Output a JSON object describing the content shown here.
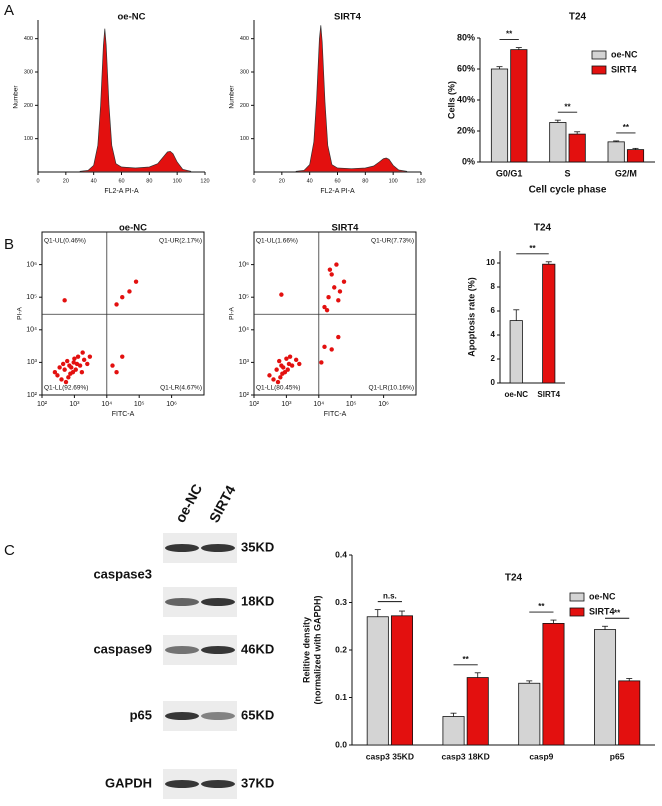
{
  "panel_labels": [
    "A",
    "B",
    "C"
  ],
  "chart_data": [
    {
      "type": "histogram-curve",
      "title": "oe-NC",
      "xlabel": "FL2-A PI-A",
      "ylabel": "Number",
      "xlim": [
        0,
        120
      ],
      "xticks": [
        0,
        20,
        40,
        60,
        80,
        100,
        120
      ],
      "ylim": [
        0,
        450
      ],
      "yticks": [
        100,
        200,
        300,
        400
      ],
      "x": [
        30,
        36,
        40,
        43,
        45,
        47,
        48,
        49,
        51,
        53,
        56,
        60,
        70,
        80,
        86,
        90,
        93,
        95,
        97,
        100,
        104,
        110
      ],
      "values": [
        2,
        5,
        20,
        80,
        200,
        380,
        430,
        380,
        200,
        80,
        25,
        15,
        12,
        15,
        25,
        45,
        60,
        62,
        55,
        30,
        8,
        2
      ],
      "color": "#e3100f"
    },
    {
      "type": "histogram-curve",
      "title": "SIRT4",
      "xlabel": "FL2-A PI-A",
      "ylabel": "Number",
      "xlim": [
        0,
        120
      ],
      "xticks": [
        0,
        20,
        40,
        60,
        80,
        100,
        120
      ],
      "ylim": [
        0,
        450
      ],
      "yticks": [
        100,
        200,
        300,
        400
      ],
      "x": [
        30,
        36,
        40,
        43,
        45,
        47,
        48,
        49,
        51,
        53,
        56,
        60,
        70,
        80,
        86,
        90,
        93,
        95,
        97,
        100,
        104,
        110
      ],
      "values": [
        2,
        5,
        22,
        90,
        220,
        400,
        440,
        390,
        210,
        80,
        22,
        12,
        10,
        12,
        18,
        30,
        40,
        42,
        38,
        20,
        6,
        2
      ],
      "color": "#e3100f"
    },
    {
      "type": "bar",
      "title": "T24",
      "xlabel": "Cell cycle  phase",
      "ylabel": "Cells (%)",
      "categories": [
        "G0/G1",
        "S",
        "G2/M"
      ],
      "series": [
        {
          "name": "oe-NC",
          "color": "#d4d4d4",
          "values": [
            60,
            25.5,
            13
          ],
          "errors": [
            1.5,
            1.5,
            0.6
          ]
        },
        {
          "name": "SIRT4",
          "color": "#e3100f",
          "values": [
            72.5,
            18,
            8
          ],
          "errors": [
            1.3,
            1.5,
            0.8
          ]
        }
      ],
      "ylim": [
        0,
        80
      ],
      "yticks": [
        {
          "value": 0,
          "label": "0%"
        },
        {
          "value": 20,
          "label": "20%"
        },
        {
          "value": 40,
          "label": "40%"
        },
        {
          "value": 60,
          "label": "60%"
        },
        {
          "value": 80,
          "label": "80%"
        }
      ],
      "annotations": [
        "**",
        "**",
        "**"
      ],
      "legend": "top-right"
    },
    {
      "type": "scatter",
      "title": "oe-NC",
      "xlabel": "FITC-A",
      "ylabel": "PI-A",
      "log": true,
      "xlim": [
        100,
        10000000
      ],
      "ylim": [
        100,
        10000000
      ],
      "xticks": [
        {
          "value": 100,
          "label": "10²"
        },
        {
          "value": 1000,
          "label": "10³"
        },
        {
          "value": 10000,
          "label": "10⁴"
        },
        {
          "value": 100000,
          "label": "10⁵"
        },
        {
          "value": 1000000,
          "label": "10⁶"
        }
      ],
      "yticks": [
        {
          "value": 100,
          "label": "10²"
        },
        {
          "value": 1000,
          "label": "10³"
        },
        {
          "value": 10000,
          "label": "10⁴"
        },
        {
          "value": 100000,
          "label": "10⁵"
        },
        {
          "value": 1000000,
          "label": "10⁶"
        }
      ],
      "gate": [
        10000,
        30000
      ],
      "quadrant_labels": [
        "Q1-UL(0.46%)",
        "Q1-UR(2.17%)",
        "Q1-LL(92.69%)",
        "Q1-LR(4.67%)"
      ],
      "x": [
        300,
        500,
        700,
        900,
        1200,
        400,
        600,
        800,
        1000,
        1500,
        2000,
        350,
        550,
        750,
        1100,
        1300,
        450,
        650,
        950,
        1700,
        2500,
        3000,
        15000,
        30000,
        20000,
        20000,
        50000,
        80000,
        30000,
        500,
        250,
        1800
      ],
      "values": [
        400,
        600,
        800,
        500,
        900,
        300,
        1100,
        700,
        1300,
        800,
        1200,
        700,
        250,
        450,
        600,
        1500,
        900,
        350,
        1000,
        500,
        900,
        1500,
        800,
        1500,
        500,
        60000,
        150000,
        300000,
        100000,
        80000,
        500,
        2000
      ],
      "color": "#e3100f"
    },
    {
      "type": "scatter",
      "title": "SIRT4",
      "xlabel": "FITC-A",
      "ylabel": "PI-A",
      "log": true,
      "xlim": [
        100,
        10000000
      ],
      "ylim": [
        100,
        10000000
      ],
      "xticks": [
        {
          "value": 100,
          "label": "10²"
        },
        {
          "value": 1000,
          "label": "10³"
        },
        {
          "value": 10000,
          "label": "10⁴"
        },
        {
          "value": 100000,
          "label": "10⁵"
        },
        {
          "value": 1000000,
          "label": "10⁶"
        }
      ],
      "yticks": [
        {
          "value": 100,
          "label": "10²"
        },
        {
          "value": 1000,
          "label": "10³"
        },
        {
          "value": 10000,
          "label": "10⁴"
        },
        {
          "value": 100000,
          "label": "10⁵"
        },
        {
          "value": 1000000,
          "label": "10⁶"
        }
      ],
      "gate": [
        10000,
        30000
      ],
      "quadrant_labels": [
        "Q1-UL(1.66%)",
        "Q1-UR(7.73%)",
        "Q1-LL(80.45%)",
        "Q1-LR(10.16%)"
      ],
      "x": [
        300,
        500,
        700,
        900,
        1200,
        400,
        600,
        800,
        1000,
        1500,
        2000,
        550,
        750,
        1100,
        1300,
        650,
        2500,
        12000,
        25000,
        40000,
        15000,
        15000,
        20000,
        30000,
        25000,
        40000,
        60000,
        35000,
        18000,
        45000,
        22000,
        700
      ],
      "values": [
        400,
        600,
        800,
        500,
        900,
        300,
        1100,
        700,
        1300,
        800,
        1200,
        250,
        450,
        600,
        1500,
        350,
        900,
        1000,
        2500,
        6000,
        3000,
        50000,
        100000,
        200000,
        500000,
        80000,
        300000,
        1000000,
        40000,
        150000,
        700000,
        120000
      ],
      "color": "#e3100f"
    },
    {
      "type": "bar",
      "title": "T24",
      "ylabel": "Apoptosis rate (%)",
      "categories": [
        "oe-NC",
        "SIRT4"
      ],
      "values": [
        5.2,
        9.9
      ],
      "errors": [
        0.9,
        0.2
      ],
      "colors": [
        "#d4d4d4",
        "#e3100f"
      ],
      "ylim": [
        0,
        11
      ],
      "yticks": [
        0,
        2,
        4,
        6,
        8,
        10
      ],
      "annotations": [
        "**"
      ]
    },
    {
      "type": "bar",
      "title": "T24",
      "ylabel": [
        "Relitive density",
        "(normalized with GAPDH)"
      ],
      "categories": [
        "casp3 35KD",
        "casp3 18KD",
        "casp9",
        "p65"
      ],
      "series": [
        {
          "name": "oe-NC",
          "color": "#d4d4d4",
          "values": [
            0.27,
            0.06,
            0.13,
            0.243
          ],
          "errors": [
            0.015,
            0.007,
            0.005,
            0.007
          ]
        },
        {
          "name": "SIRT4",
          "color": "#e3100f",
          "values": [
            0.272,
            0.142,
            0.256,
            0.135
          ],
          "errors": [
            0.01,
            0.01,
            0.007,
            0.005
          ]
        }
      ],
      "ylim": [
        0,
        0.4
      ],
      "yticks": [
        {
          "value": 0,
          "label": "0.0"
        },
        0.1,
        0.2,
        0.3,
        0.4
      ],
      "annotations": [
        "n.s.",
        "**",
        "**",
        "**"
      ],
      "legend": "top-right"
    }
  ],
  "western_blot": {
    "lanes": [
      "oe-NC",
      "SIRT4"
    ],
    "rows": [
      {
        "protein": "caspase3",
        "bands": [
          "35KD",
          "18KD"
        ]
      },
      {
        "protein": "caspase9",
        "bands": [
          "46KD"
        ]
      },
      {
        "protein": "p65",
        "bands": [
          "65KD"
        ]
      },
      {
        "protein": "GAPDH",
        "bands": [
          "37KD"
        ]
      }
    ]
  }
}
